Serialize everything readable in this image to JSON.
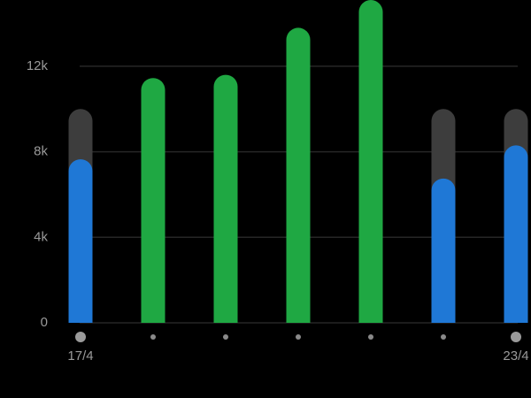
{
  "chart_data": {
    "type": "bar",
    "categories": [
      "17/4",
      null,
      null,
      null,
      null,
      null,
      "23/4"
    ],
    "values": [
      7650,
      11450,
      11600,
      13800,
      15100,
      6750,
      8300
    ],
    "goal": 10000,
    "color_below": "#1f78d6",
    "color_reached": "#1fa843",
    "goal_color": "#3d3d3d",
    "ylim": [
      0,
      15100
    ],
    "yticks": [
      0,
      {
        "value": 4000,
        "label": "4k"
      },
      {
        "value": 8000,
        "label": "8k"
      },
      {
        "value": 12000,
        "label": "12k"
      }
    ],
    "grid": true
  }
}
